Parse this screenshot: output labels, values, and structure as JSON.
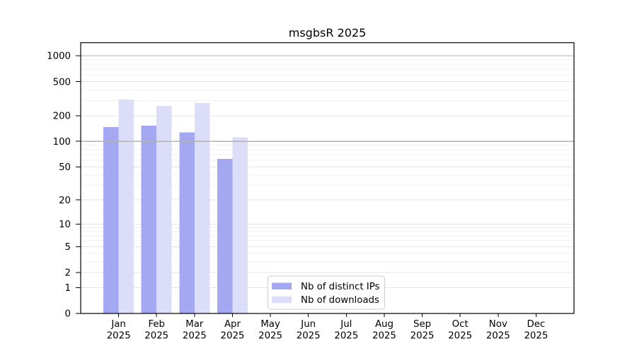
{
  "title": "msgbsR 2025",
  "colors": {
    "distinct_ips": "#a4a8f0",
    "downloads": "#dcddf9",
    "grid_minor": "#f1f1f1",
    "grid_major": "#e4e4e4",
    "reference_line": "#b3b3b3",
    "axis": "#000000",
    "legend_border": "#cccccc",
    "background": "#ffffff"
  },
  "legend": {
    "items": [
      {
        "label": "Nb of distinct IPs",
        "color": "#a4a8f0"
      },
      {
        "label": "Nb of downloads",
        "color": "#dcddf9"
      }
    ]
  },
  "chart_data": {
    "type": "bar",
    "title": "msgbsR 2025",
    "xlabel": "",
    "ylabel": "",
    "categories": [
      "Jan 2025",
      "Feb 2025",
      "Mar 2025",
      "Apr 2025",
      "May 2025",
      "Jun 2025",
      "Jul 2025",
      "Aug 2025",
      "Sep 2025",
      "Oct 2025",
      "Nov 2025",
      "Dec 2025"
    ],
    "series": [
      {
        "name": "Nb of distinct IPs",
        "color": "#a4a8f0",
        "values": [
          147,
          152,
          128,
          62,
          null,
          null,
          null,
          null,
          null,
          null,
          null,
          null
        ]
      },
      {
        "name": "Nb of downloads",
        "color": "#dcddf9",
        "values": [
          309,
          261,
          281,
          111,
          null,
          null,
          null,
          null,
          null,
          null,
          null,
          null
        ]
      }
    ],
    "yscale": "log1p",
    "ylim": [
      0,
      1420
    ],
    "yticks": [
      0,
      1,
      2,
      5,
      10,
      20,
      50,
      100,
      200,
      500,
      1000
    ],
    "minor_yticks": [
      3,
      4,
      6,
      7,
      8,
      9,
      30,
      40,
      60,
      70,
      80,
      90,
      300,
      400,
      600,
      700,
      800,
      900
    ],
    "reference_lines": [
      100,
      1000
    ],
    "grid": true,
    "legend_position": "bottom-center"
  }
}
